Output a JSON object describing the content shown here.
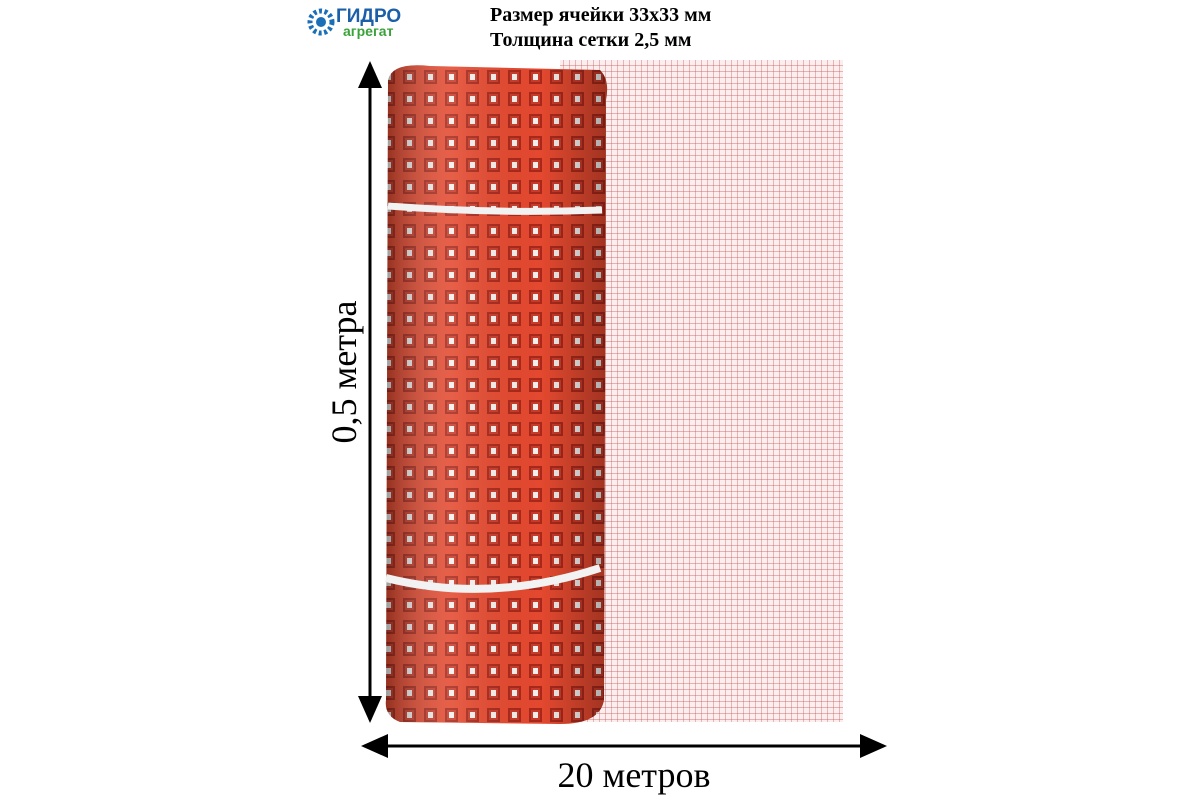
{
  "logo": {
    "brand": "ГИДРО",
    "sub": "агрегат"
  },
  "specs": [
    "Размер ячейки 33х33 мм",
    "Толщина сетки 2,5 мм"
  ],
  "dimensions": {
    "height": "0,5 метра",
    "length": "20 метров"
  }
}
